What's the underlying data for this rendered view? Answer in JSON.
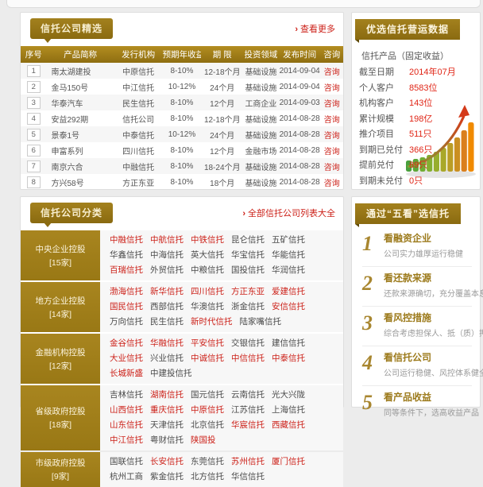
{
  "featured_panel": {
    "tab": "信托公司精选",
    "link_arrow": "›",
    "more_link": "查看更多",
    "table": {
      "headers": [
        "序号",
        "产品简称",
        "发行机构",
        "预期年收益",
        "期 限",
        "投资领域",
        "发布时间",
        "咨询"
      ],
      "rows": [
        {
          "no": "1",
          "name": "南太湖建投",
          "issuer": "中原信托",
          "yield": "8-10%",
          "term": "12-18个月",
          "field": "基础设施",
          "date": "2014-09-04",
          "consult": "咨询"
        },
        {
          "no": "2",
          "name": "金马150号",
          "issuer": "中江信托",
          "yield": "10-12%",
          "term": "24个月",
          "field": "基础设施",
          "date": "2014-09-04",
          "consult": "咨询"
        },
        {
          "no": "3",
          "name": "华泰汽车",
          "issuer": "民生信托",
          "yield": "8-10%",
          "term": "12个月",
          "field": "工商企业",
          "date": "2014-09-03",
          "consult": "咨询"
        },
        {
          "no": "4",
          "name": "安益292期",
          "issuer": "信托公司",
          "yield": "8-10%",
          "term": "12-18个月",
          "field": "基础设施",
          "date": "2014-08-28",
          "consult": "咨询"
        },
        {
          "no": "5",
          "name": "景泰1号",
          "issuer": "中泰信托",
          "yield": "10-12%",
          "term": "24个月",
          "field": "基础设施",
          "date": "2014-08-28",
          "consult": "咨询"
        },
        {
          "no": "6",
          "name": "申富系列",
          "issuer": "四川信托",
          "yield": "8-10%",
          "term": "12个月",
          "field": "金融市场",
          "date": "2014-08-28",
          "consult": "咨询"
        },
        {
          "no": "7",
          "name": "南京六合",
          "issuer": "中融信托",
          "yield": "8-10%",
          "term": "18-24个月",
          "field": "基础设施",
          "date": "2014-08-28",
          "consult": "咨询"
        },
        {
          "no": "8",
          "name": "方兴58号",
          "issuer": "方正东亚",
          "yield": "8-10%",
          "term": "18个月",
          "field": "基础设施",
          "date": "2014-08-28",
          "consult": "咨询"
        }
      ]
    }
  },
  "classification_panel": {
    "tab": "信托公司分类",
    "link_arrow": "›",
    "all_link": "全部信托公司列表大全",
    "categories": [
      {
        "name": "中央企业控股",
        "count": "[15家]",
        "companies": [
          {
            "label": "中融信托",
            "hot": true
          },
          {
            "label": "中航信托",
            "hot": true
          },
          {
            "label": "中铁信托",
            "hot": true
          },
          {
            "label": "昆仑信托",
            "hot": false
          },
          {
            "label": "五矿信托",
            "hot": false
          },
          {
            "label": "华鑫信托",
            "hot": false
          },
          {
            "label": "中海信托",
            "hot": false
          },
          {
            "label": "英大信托",
            "hot": false
          },
          {
            "label": "华宝信托",
            "hot": false
          },
          {
            "label": "华能信托",
            "hot": false
          },
          {
            "label": "百瑞信托",
            "hot": true
          },
          {
            "label": "外贸信托",
            "hot": false
          },
          {
            "label": "中粮信托",
            "hot": false
          },
          {
            "label": "国投信托",
            "hot": false
          },
          {
            "label": "华润信托",
            "hot": false
          }
        ]
      },
      {
        "name": "地方企业控股",
        "count": "[14家]",
        "companies": [
          {
            "label": "渤海信托",
            "hot": true
          },
          {
            "label": "新华信托",
            "hot": true
          },
          {
            "label": "四川信托",
            "hot": true
          },
          {
            "label": "方正东亚",
            "hot": true
          },
          {
            "label": "爱建信托",
            "hot": true
          },
          {
            "label": "国民信托",
            "hot": true
          },
          {
            "label": "西部信托",
            "hot": false
          },
          {
            "label": "华澳信托",
            "hot": false
          },
          {
            "label": "浙金信托",
            "hot": false
          },
          {
            "label": "安信信托",
            "hot": true
          },
          {
            "label": "万向信托",
            "hot": false
          },
          {
            "label": "民生信托",
            "hot": false
          },
          {
            "label": "新时代信托",
            "hot": true
          },
          {
            "label": "陆家嘴信托",
            "hot": false
          }
        ]
      },
      {
        "name": "金融机构控股",
        "count": "[12家]",
        "companies": [
          {
            "label": "金谷信托",
            "hot": true
          },
          {
            "label": "华融信托",
            "hot": true
          },
          {
            "label": "平安信托",
            "hot": true
          },
          {
            "label": "交银信托",
            "hot": false
          },
          {
            "label": "建信信托",
            "hot": false
          },
          {
            "label": "大业信托",
            "hot": true
          },
          {
            "label": "兴业信托",
            "hot": false
          },
          {
            "label": "中诚信托",
            "hot": true
          },
          {
            "label": "中信信托",
            "hot": true
          },
          {
            "label": "中泰信托",
            "hot": true
          },
          {
            "label": "长城新盛",
            "hot": true
          },
          {
            "label": "中建投信托",
            "hot": false
          }
        ]
      },
      {
        "name": "省级政府控股",
        "count": "[18家]",
        "companies": [
          {
            "label": "吉林信托",
            "hot": false
          },
          {
            "label": "湖南信托",
            "hot": true
          },
          {
            "label": "国元信托",
            "hot": false
          },
          {
            "label": "云南信托",
            "hot": false
          },
          {
            "label": "光大兴陇",
            "hot": false
          },
          {
            "label": "山西信托",
            "hot": true
          },
          {
            "label": "重庆信托",
            "hot": true
          },
          {
            "label": "中原信托",
            "hot": true
          },
          {
            "label": "江苏信托",
            "hot": false
          },
          {
            "label": "上海信托",
            "hot": false
          },
          {
            "label": "山东信托",
            "hot": true
          },
          {
            "label": "天津信托",
            "hot": false
          },
          {
            "label": "北京信托",
            "hot": false
          },
          {
            "label": "华宸信托",
            "hot": true
          },
          {
            "label": "西藏信托",
            "hot": true
          },
          {
            "label": "中江信托",
            "hot": true
          },
          {
            "label": "粤财信托",
            "hot": false
          },
          {
            "label": "陕国投",
            "hot": true
          }
        ]
      },
      {
        "name": "市级政府控股",
        "count": "[9家]",
        "companies": [
          {
            "label": "国联信托",
            "hot": false
          },
          {
            "label": "长安信托",
            "hot": true
          },
          {
            "label": "东莞信托",
            "hot": false
          },
          {
            "label": "苏州信托",
            "hot": true
          },
          {
            "label": "厦门信托",
            "hot": true
          },
          {
            "label": "杭州工商",
            "hot": false
          },
          {
            "label": "紫金信托",
            "hot": false
          },
          {
            "label": "北方信托",
            "hot": false
          },
          {
            "label": "华信信托",
            "hot": false
          }
        ]
      }
    ]
  },
  "stats_panel": {
    "tab": "优选信托营运数据",
    "subtitle": "信托产品（固定收益）",
    "stats": [
      {
        "label": "截至日期",
        "value": "2014年07月"
      },
      {
        "label": "个人客户",
        "value": "8583位"
      },
      {
        "label": "机构客户",
        "value": "143位"
      },
      {
        "label": "累计规模",
        "value": "198亿"
      },
      {
        "label": "推介项目",
        "value": "511只"
      },
      {
        "label": "到期已兑付",
        "value": "366只"
      },
      {
        "label": "提前兑付",
        "value": "89只"
      },
      {
        "label": "到期未兑付",
        "value": "0只"
      }
    ],
    "chart": {
      "type": "decorative-rising-bars",
      "bars": [
        14,
        16,
        18,
        21,
        25,
        30,
        36,
        43,
        52,
        62
      ],
      "colors": [
        "#4AA03C",
        "#5CA738",
        "#70AC34",
        "#84AF31",
        "#97AE2D",
        "#A9A829",
        "#BA9D25",
        "#CA8F21",
        "#DA7F1D",
        "#F08A00"
      ],
      "arrow_start_color": "#7FA437",
      "arrow_end_color": "#D43A1A"
    }
  },
  "five_look_panel": {
    "tab": "通过“五看”选信托",
    "items": [
      {
        "num": "1",
        "title": "看融资企业",
        "desc": "公司实力雄厚运行稳健"
      },
      {
        "num": "2",
        "title": "看还款来源",
        "desc": "还款来源确切，充分覆盖本息"
      },
      {
        "num": "3",
        "title": "看风控措施",
        "desc": "综合考虑担保人、抵（质）押物"
      },
      {
        "num": "4",
        "title": "看信托公司",
        "desc": "公司运行稳健、风控体系健全"
      },
      {
        "num": "5",
        "title": "看产品收益",
        "desc": "同等条件下，选高收益产品"
      }
    ]
  }
}
